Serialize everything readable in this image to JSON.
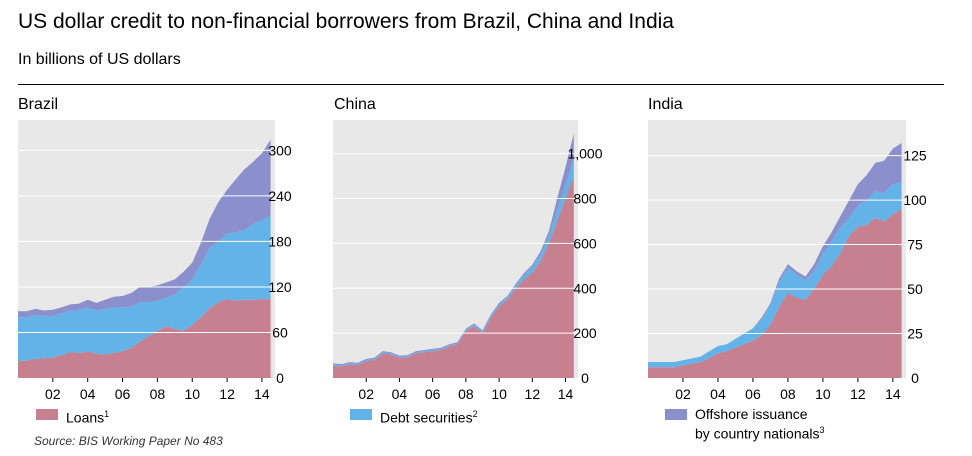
{
  "title": "US dollar credit to non-financial borrowers from Brazil, China and India",
  "subtitle": "In billions of US dollars",
  "source": "Source: BIS Working Paper No 483",
  "legend": [
    {
      "label": "Loans",
      "note": "1",
      "color": "#c6808f"
    },
    {
      "label": "Debt securities",
      "note": "2",
      "color": "#63b2e8"
    },
    {
      "label": "Offshore issuance",
      "label2": "by country nationals",
      "note": "3",
      "color": "#8b8fcc"
    }
  ],
  "colors": {
    "plot_bg": "#e8e8e8",
    "gridline": "#ffffff",
    "loans": "#c6808f",
    "debt": "#63b2e8",
    "offshore": "#8b8fcc"
  },
  "chart_data": [
    {
      "type": "area",
      "stacked": true,
      "title": "Brazil",
      "x": [
        2000,
        2000.5,
        2001,
        2001.5,
        2002,
        2002.5,
        2003,
        2003.5,
        2004,
        2004.5,
        2005,
        2005.5,
        2006,
        2006.5,
        2007,
        2007.5,
        2008,
        2008.5,
        2009,
        2009.5,
        2010,
        2010.5,
        2011,
        2011.5,
        2012,
        2012.5,
        2013,
        2013.5,
        2014,
        2014.5
      ],
      "series": [
        {
          "name": "Loans",
          "values": [
            22,
            23,
            25,
            26,
            27,
            30,
            34,
            33,
            35,
            32,
            31,
            33,
            35,
            40,
            48,
            55,
            62,
            68,
            65,
            62,
            70,
            80,
            92,
            100,
            104,
            102,
            103,
            103,
            104,
            104
          ]
        },
        {
          "name": "Debt securities",
          "values": [
            58,
            57,
            58,
            55,
            55,
            55,
            55,
            57,
            58,
            57,
            60,
            60,
            58,
            54,
            52,
            45,
            40,
            38,
            45,
            58,
            60,
            70,
            80,
            80,
            86,
            90,
            92,
            100,
            104,
            110
          ]
        },
        {
          "name": "Offshore issuance by country nationals",
          "values": [
            8,
            8,
            8,
            8,
            8,
            8,
            8,
            8,
            10,
            10,
            12,
            14,
            15,
            18,
            20,
            20,
            20,
            20,
            20,
            20,
            22,
            28,
            38,
            52,
            58,
            70,
            80,
            82,
            88,
            100
          ]
        }
      ],
      "xticks": [
        "02",
        "04",
        "06",
        "08",
        "10",
        "12",
        "14"
      ],
      "ylim": [
        0,
        340
      ],
      "yticks": [
        0,
        60,
        120,
        180,
        240,
        300
      ],
      "ytick_labels": [
        "0",
        "60",
        "120",
        "180",
        "240",
        "300"
      ]
    },
    {
      "type": "area",
      "stacked": true,
      "title": "China",
      "x": [
        2000,
        2000.5,
        2001,
        2001.5,
        2002,
        2002.5,
        2003,
        2003.5,
        2004,
        2004.5,
        2005,
        2005.5,
        2006,
        2006.5,
        2007,
        2007.5,
        2008,
        2008.5,
        2009,
        2009.5,
        2010,
        2010.5,
        2011,
        2011.5,
        2012,
        2012.5,
        2013,
        2013.5,
        2014,
        2014.5
      ],
      "series": [
        {
          "name": "Loans",
          "values": [
            55,
            52,
            60,
            58,
            75,
            80,
            110,
            105,
            90,
            92,
            110,
            115,
            120,
            125,
            140,
            150,
            210,
            230,
            200,
            270,
            320,
            350,
            400,
            440,
            470,
            520,
            600,
            700,
            800,
            900
          ]
        },
        {
          "name": "Debt securities",
          "values": [
            5,
            5,
            5,
            5,
            5,
            5,
            5,
            5,
            5,
            5,
            5,
            5,
            5,
            5,
            5,
            5,
            5,
            8,
            8,
            8,
            10,
            10,
            15,
            20,
            25,
            30,
            35,
            50,
            60,
            80
          ]
        },
        {
          "name": "Offshore issuance by country nationals",
          "values": [
            5,
            5,
            5,
            5,
            5,
            5,
            5,
            5,
            5,
            5,
            5,
            5,
            5,
            5,
            5,
            5,
            5,
            5,
            5,
            5,
            5,
            5,
            5,
            8,
            10,
            15,
            20,
            50,
            80,
            110
          ]
        }
      ],
      "xticks": [
        "02",
        "04",
        "06",
        "08",
        "10",
        "12",
        "14"
      ],
      "ylim": [
        0,
        1150
      ],
      "yticks": [
        0,
        200,
        400,
        600,
        800,
        1000
      ],
      "ytick_labels": [
        "0",
        "200",
        "400",
        "600",
        "800",
        "1,000"
      ]
    },
    {
      "type": "area",
      "stacked": true,
      "title": "India",
      "x": [
        2000,
        2000.5,
        2001,
        2001.5,
        2002,
        2002.5,
        2003,
        2003.5,
        2004,
        2004.5,
        2005,
        2005.5,
        2006,
        2006.5,
        2007,
        2007.5,
        2008,
        2008.5,
        2009,
        2009.5,
        2010,
        2010.5,
        2011,
        2011.5,
        2012,
        2012.5,
        2013,
        2013.5,
        2014,
        2014.5
      ],
      "series": [
        {
          "name": "Loans",
          "values": [
            6,
            6,
            6,
            6,
            7,
            8,
            9,
            11,
            14,
            15,
            17,
            19,
            21,
            24,
            30,
            40,
            48,
            45,
            44,
            50,
            58,
            63,
            70,
            80,
            85,
            86,
            90,
            88,
            92,
            95
          ]
        },
        {
          "name": "Debt securities",
          "values": [
            3,
            3,
            3,
            3,
            3,
            3,
            3,
            4,
            4,
            4,
            5,
            6,
            7,
            9,
            11,
            14,
            14,
            13,
            11,
            10,
            12,
            14,
            15,
            10,
            12,
            14,
            15,
            16,
            17,
            15
          ]
        },
        {
          "name": "Offshore issuance by country nationals",
          "values": [
            0,
            0,
            0,
            0,
            0,
            0,
            0,
            0,
            0,
            0,
            0,
            0,
            0,
            1,
            1,
            2,
            2,
            2,
            2,
            4,
            4,
            5,
            6,
            10,
            12,
            14,
            16,
            18,
            20,
            22
          ]
        }
      ],
      "xticks": [
        "02",
        "04",
        "06",
        "08",
        "10",
        "12",
        "14"
      ],
      "ylim": [
        0,
        145
      ],
      "yticks": [
        0,
        25,
        50,
        75,
        100,
        125
      ],
      "ytick_labels": [
        "0",
        "25",
        "50",
        "75",
        "100",
        "125"
      ]
    }
  ]
}
